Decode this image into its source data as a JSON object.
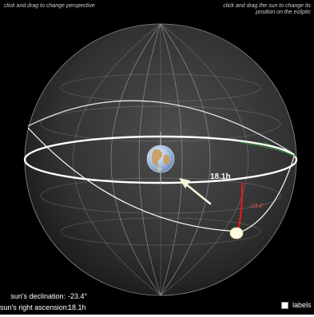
{
  "hints": {
    "left": "click and drag to change perspective",
    "right_line1": "click and drag the sun to change its",
    "right_line2": "position on the ecliptic"
  },
  "sun": {
    "right_ascension_label": "18.1h",
    "declination_label": "-23.4°"
  },
  "readouts": {
    "declination_label": "sun's declination:",
    "declination_value": "-23.4°",
    "right_ascension_label": "sun's right ascension:",
    "right_ascension_value": "18.1h"
  },
  "labels_toggle": {
    "label": "labels",
    "checked": false
  },
  "colors": {
    "background": "#000000",
    "sphere": "#3a3a3a",
    "grid_lines": "#9a9a9a",
    "celestial_equator": "#ffffff",
    "ecliptic": "#ffffff",
    "ecliptic_far_side": "#2f7a2f",
    "declination_arc": "#dd1d1d",
    "sun": "#fffbe0",
    "pointer_arrow": "#f4f4d8"
  },
  "icons": {
    "earth": "earth-globe-icon",
    "sun": "sun-disc-icon",
    "arrow": "direction-arrow-icon"
  }
}
